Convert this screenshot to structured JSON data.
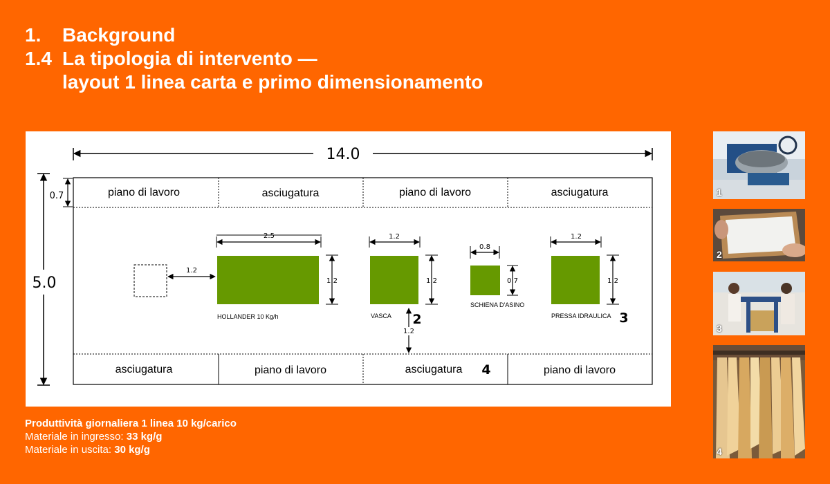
{
  "header": {
    "line1_num": "1.",
    "line1_text": "Background",
    "line2_num": "1.4",
    "line2_text": "La tipologia di intervento —",
    "line3_text": "layout 1 linea carta e primo dimensionamento"
  },
  "diagram": {
    "total_width": "14.0",
    "total_height": "5.0",
    "strip_height": "0.7",
    "top_strip": [
      "piano di lavoro",
      "asciugatura",
      "piano di lavoro",
      "asciugatura"
    ],
    "bottom_strip": [
      "asciugatura",
      "piano di lavoro",
      "asciugatura",
      "piano di lavoro"
    ],
    "bottom_marker": "4",
    "gap_left": "1.2",
    "gap_bottom": "1.2",
    "machines": [
      {
        "name": "HOLLANDER 10 Kg/h",
        "width": "2.5",
        "height": "1.2",
        "marker": ""
      },
      {
        "name": "VASCA",
        "width": "1.2",
        "height": "1.2",
        "marker": "2"
      },
      {
        "name": "SCHIENA D'ASINO",
        "width": "0.8",
        "height": "0.7",
        "marker": ""
      },
      {
        "name": "PRESSA IDRAULICA",
        "width": "1.2",
        "height": "1.2",
        "marker": "3"
      }
    ],
    "machine_color": "#669900"
  },
  "footer": {
    "line1": "Produttività giornaliera 1 linea 10 kg/carico",
    "line2_label": "Materiale in ingresso: ",
    "line2_value": "33 kg/g",
    "line3_label": "Materiale in uscita: ",
    "line3_value": "30 kg/g"
  },
  "photos": [
    {
      "label": "1",
      "subject": "hollander-beater-photo"
    },
    {
      "label": "2",
      "subject": "paper-mould-photo"
    },
    {
      "label": "3",
      "subject": "hydraulic-press-photo"
    },
    {
      "label": "4",
      "subject": "drying-sheets-photo"
    }
  ]
}
